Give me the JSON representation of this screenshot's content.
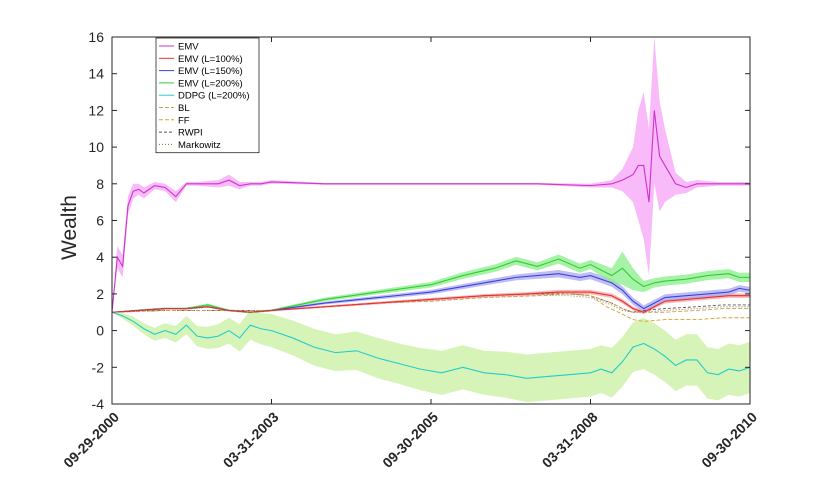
{
  "chart_data": {
    "type": "line",
    "ylabel": "Wealth",
    "xlabel": "",
    "ylim": [
      -4,
      16
    ],
    "yticks": [
      -4,
      -2,
      0,
      2,
      4,
      6,
      8,
      10,
      12,
      14,
      16
    ],
    "xticks": [
      {
        "pos": 0,
        "label": "09-29-2000"
      },
      {
        "pos": 30,
        "label": "03-31-2003"
      },
      {
        "pos": 60,
        "label": "09-30-2005"
      },
      {
        "pos": 90,
        "label": "03-31-2008"
      },
      {
        "pos": 120,
        "label": "09-30-2010"
      }
    ],
    "legend_position": "top-left",
    "series": [
      {
        "name": "EMV",
        "color": "#cc33cc",
        "band_color": "#f5a3f5",
        "x": [
          0,
          1,
          2,
          3,
          4,
          5,
          6,
          8,
          10,
          12,
          14,
          16,
          20,
          22,
          24,
          26,
          28,
          30,
          40,
          50,
          60,
          70,
          80,
          90,
          94,
          96,
          98,
          99,
          100,
          101,
          102,
          103,
          104,
          106,
          108,
          110,
          114,
          118,
          120
        ],
        "y": [
          1.0,
          4.0,
          3.5,
          6.8,
          7.6,
          7.7,
          7.5,
          7.9,
          7.8,
          7.3,
          8.0,
          8.0,
          8.0,
          8.2,
          7.9,
          8.0,
          8.0,
          8.1,
          8.0,
          8.0,
          8.0,
          8.0,
          8.0,
          7.9,
          8.0,
          8.2,
          8.5,
          9.0,
          9.0,
          7.0,
          12.0,
          9.5,
          9.0,
          8.0,
          7.8,
          8.0,
          8.0,
          8.0,
          8.0
        ],
        "err": [
          0.0,
          0.6,
          0.6,
          0.5,
          0.4,
          0.3,
          0.3,
          0.2,
          0.2,
          0.3,
          0.1,
          0.1,
          0.2,
          0.3,
          0.2,
          0.1,
          0.1,
          0.1,
          0.05,
          0.05,
          0.05,
          0.05,
          0.05,
          0.1,
          0.2,
          0.6,
          1.5,
          3.0,
          4.0,
          4.0,
          4.0,
          3.0,
          2.0,
          0.6,
          0.3,
          0.2,
          0.1,
          0.1,
          0.1
        ]
      },
      {
        "name": "EMV (L=100%)",
        "color": "#e83030",
        "band_color": "#f7a0a0",
        "x": [
          0,
          5,
          10,
          14,
          18,
          22,
          26,
          30,
          40,
          50,
          60,
          70,
          78,
          84,
          90,
          94,
          96,
          98,
          100,
          102,
          104,
          108,
          112,
          116,
          120
        ],
        "y": [
          1.0,
          1.1,
          1.2,
          1.2,
          1.3,
          1.1,
          1.0,
          1.1,
          1.3,
          1.5,
          1.7,
          1.9,
          2.0,
          2.1,
          2.1,
          1.9,
          1.6,
          1.2,
          1.0,
          1.3,
          1.6,
          1.7,
          1.8,
          1.9,
          1.9
        ],
        "err": [
          0,
          0.05,
          0.05,
          0.05,
          0.05,
          0.05,
          0.05,
          0.05,
          0.06,
          0.07,
          0.08,
          0.09,
          0.1,
          0.12,
          0.12,
          0.12,
          0.12,
          0.1,
          0.1,
          0.1,
          0.12,
          0.12,
          0.12,
          0.12,
          0.12
        ]
      },
      {
        "name": "EMV (L=150%)",
        "color": "#4040d8",
        "band_color": "#a8a8f0",
        "x": [
          0,
          5,
          10,
          14,
          18,
          22,
          26,
          30,
          40,
          50,
          60,
          66,
          72,
          76,
          80,
          84,
          88,
          90,
          94,
          96,
          98,
          100,
          102,
          104,
          108,
          112,
          116,
          118,
          120
        ],
        "y": [
          1.0,
          1.1,
          1.2,
          1.2,
          1.3,
          1.1,
          1.0,
          1.1,
          1.5,
          1.8,
          2.1,
          2.4,
          2.7,
          2.9,
          3.0,
          3.1,
          2.9,
          3.0,
          2.6,
          2.2,
          1.6,
          1.2,
          1.5,
          1.8,
          1.9,
          2.0,
          2.1,
          2.3,
          2.2
        ],
        "err": [
          0,
          0.05,
          0.05,
          0.05,
          0.05,
          0.05,
          0.05,
          0.05,
          0.08,
          0.1,
          0.12,
          0.14,
          0.15,
          0.16,
          0.18,
          0.2,
          0.2,
          0.2,
          0.22,
          0.22,
          0.2,
          0.18,
          0.18,
          0.18,
          0.18,
          0.18,
          0.18,
          0.18,
          0.18
        ]
      },
      {
        "name": "EMV (L=200%)",
        "color": "#33cc33",
        "band_color": "#88ee88",
        "x": [
          0,
          5,
          10,
          14,
          18,
          22,
          26,
          30,
          40,
          50,
          60,
          66,
          72,
          76,
          80,
          84,
          88,
          90,
          94,
          96,
          98,
          100,
          102,
          104,
          108,
          112,
          116,
          118,
          120
        ],
        "y": [
          1.0,
          1.1,
          1.2,
          1.2,
          1.4,
          1.1,
          1.0,
          1.1,
          1.7,
          2.1,
          2.5,
          3.0,
          3.4,
          3.8,
          3.5,
          3.9,
          3.4,
          3.6,
          3.0,
          3.4,
          2.8,
          2.4,
          2.6,
          2.7,
          2.8,
          3.0,
          3.1,
          2.9,
          2.9
        ],
        "err": [
          0,
          0.05,
          0.05,
          0.06,
          0.08,
          0.06,
          0.06,
          0.06,
          0.1,
          0.12,
          0.15,
          0.18,
          0.2,
          0.22,
          0.22,
          0.25,
          0.25,
          0.25,
          0.4,
          0.9,
          0.6,
          0.3,
          0.25,
          0.25,
          0.25,
          0.25,
          0.25,
          0.25,
          0.25
        ]
      },
      {
        "name": "DDPG (L=200%)",
        "color": "#22cccc",
        "band_color": "#c8f0a0",
        "x": [
          0,
          2,
          4,
          6,
          8,
          10,
          12,
          14,
          16,
          18,
          20,
          22,
          24,
          26,
          28,
          30,
          34,
          38,
          42,
          46,
          50,
          54,
          58,
          62,
          66,
          70,
          74,
          78,
          82,
          86,
          90,
          92,
          94,
          96,
          98,
          100,
          102,
          104,
          106,
          108,
          110,
          112,
          114,
          116,
          118,
          120
        ],
        "y": [
          1.0,
          0.8,
          0.5,
          0.1,
          -0.2,
          0.0,
          -0.2,
          0.3,
          -0.3,
          -0.4,
          -0.3,
          0.0,
          -0.4,
          0.3,
          0.1,
          0.0,
          -0.4,
          -0.9,
          -1.2,
          -1.1,
          -1.5,
          -1.8,
          -2.1,
          -2.3,
          -2.0,
          -2.3,
          -2.4,
          -2.6,
          -2.5,
          -2.4,
          -2.3,
          -2.1,
          -2.3,
          -1.7,
          -0.9,
          -0.7,
          -1.0,
          -1.4,
          -1.9,
          -1.6,
          -1.6,
          -2.3,
          -2.4,
          -2.1,
          -2.2,
          -2.0
        ],
        "err": [
          0,
          0.15,
          0.25,
          0.3,
          0.35,
          0.4,
          0.45,
          0.5,
          0.55,
          0.6,
          0.65,
          0.7,
          0.75,
          0.8,
          0.85,
          0.9,
          0.95,
          1.0,
          1.0,
          1.05,
          1.1,
          1.1,
          1.15,
          1.2,
          1.2,
          1.2,
          1.25,
          1.3,
          1.3,
          1.3,
          1.3,
          1.3,
          1.35,
          1.35,
          1.35,
          1.4,
          1.4,
          1.4,
          1.4,
          1.4,
          1.4,
          1.4,
          1.4,
          1.4,
          1.4,
          1.4
        ]
      },
      {
        "name": "BL",
        "color": "#c8a060",
        "dash": "4,2",
        "x": [
          0,
          10,
          20,
          30,
          40,
          50,
          60,
          70,
          80,
          86,
          90,
          94,
          96,
          98,
          100,
          104,
          110,
          115,
          120
        ],
        "y": [
          1.0,
          1.1,
          1.1,
          1.1,
          1.3,
          1.5,
          1.6,
          1.8,
          1.9,
          2.0,
          1.9,
          1.5,
          1.2,
          1.0,
          1.0,
          1.0,
          1.1,
          1.2,
          1.2
        ]
      },
      {
        "name": "FF",
        "color": "#d8a030",
        "dash": "4,2",
        "x": [
          0,
          10,
          20,
          30,
          40,
          50,
          60,
          70,
          80,
          86,
          90,
          93,
          96,
          98,
          100,
          104,
          110,
          115,
          120
        ],
        "y": [
          1.0,
          1.1,
          1.1,
          1.1,
          1.3,
          1.5,
          1.7,
          1.9,
          2.0,
          2.1,
          1.9,
          1.3,
          0.9,
          0.6,
          0.5,
          0.6,
          0.6,
          0.7,
          0.7
        ]
      },
      {
        "name": "RWPI",
        "color": "#555555",
        "dash": "3,2",
        "x": [
          0,
          10,
          20,
          30,
          40,
          50,
          60,
          70,
          80,
          86,
          90,
          94,
          96,
          98,
          100,
          104,
          110,
          115,
          120
        ],
        "y": [
          1.0,
          1.1,
          1.1,
          1.1,
          1.3,
          1.5,
          1.7,
          1.9,
          2.0,
          2.0,
          1.9,
          1.5,
          1.2,
          1.0,
          1.1,
          1.2,
          1.3,
          1.4,
          1.4
        ]
      },
      {
        "name": "Markowitz",
        "color": "#8a7030",
        "dash": "1,2",
        "x": [
          0,
          10,
          20,
          30,
          40,
          50,
          60,
          70,
          80,
          86,
          90,
          94,
          96,
          98,
          100,
          104,
          110,
          115,
          120
        ],
        "y": [
          1.0,
          1.1,
          1.1,
          1.1,
          1.3,
          1.5,
          1.6,
          1.8,
          1.9,
          1.9,
          1.8,
          1.4,
          1.1,
          1.0,
          1.0,
          1.1,
          1.2,
          1.3,
          1.3
        ]
      }
    ]
  }
}
